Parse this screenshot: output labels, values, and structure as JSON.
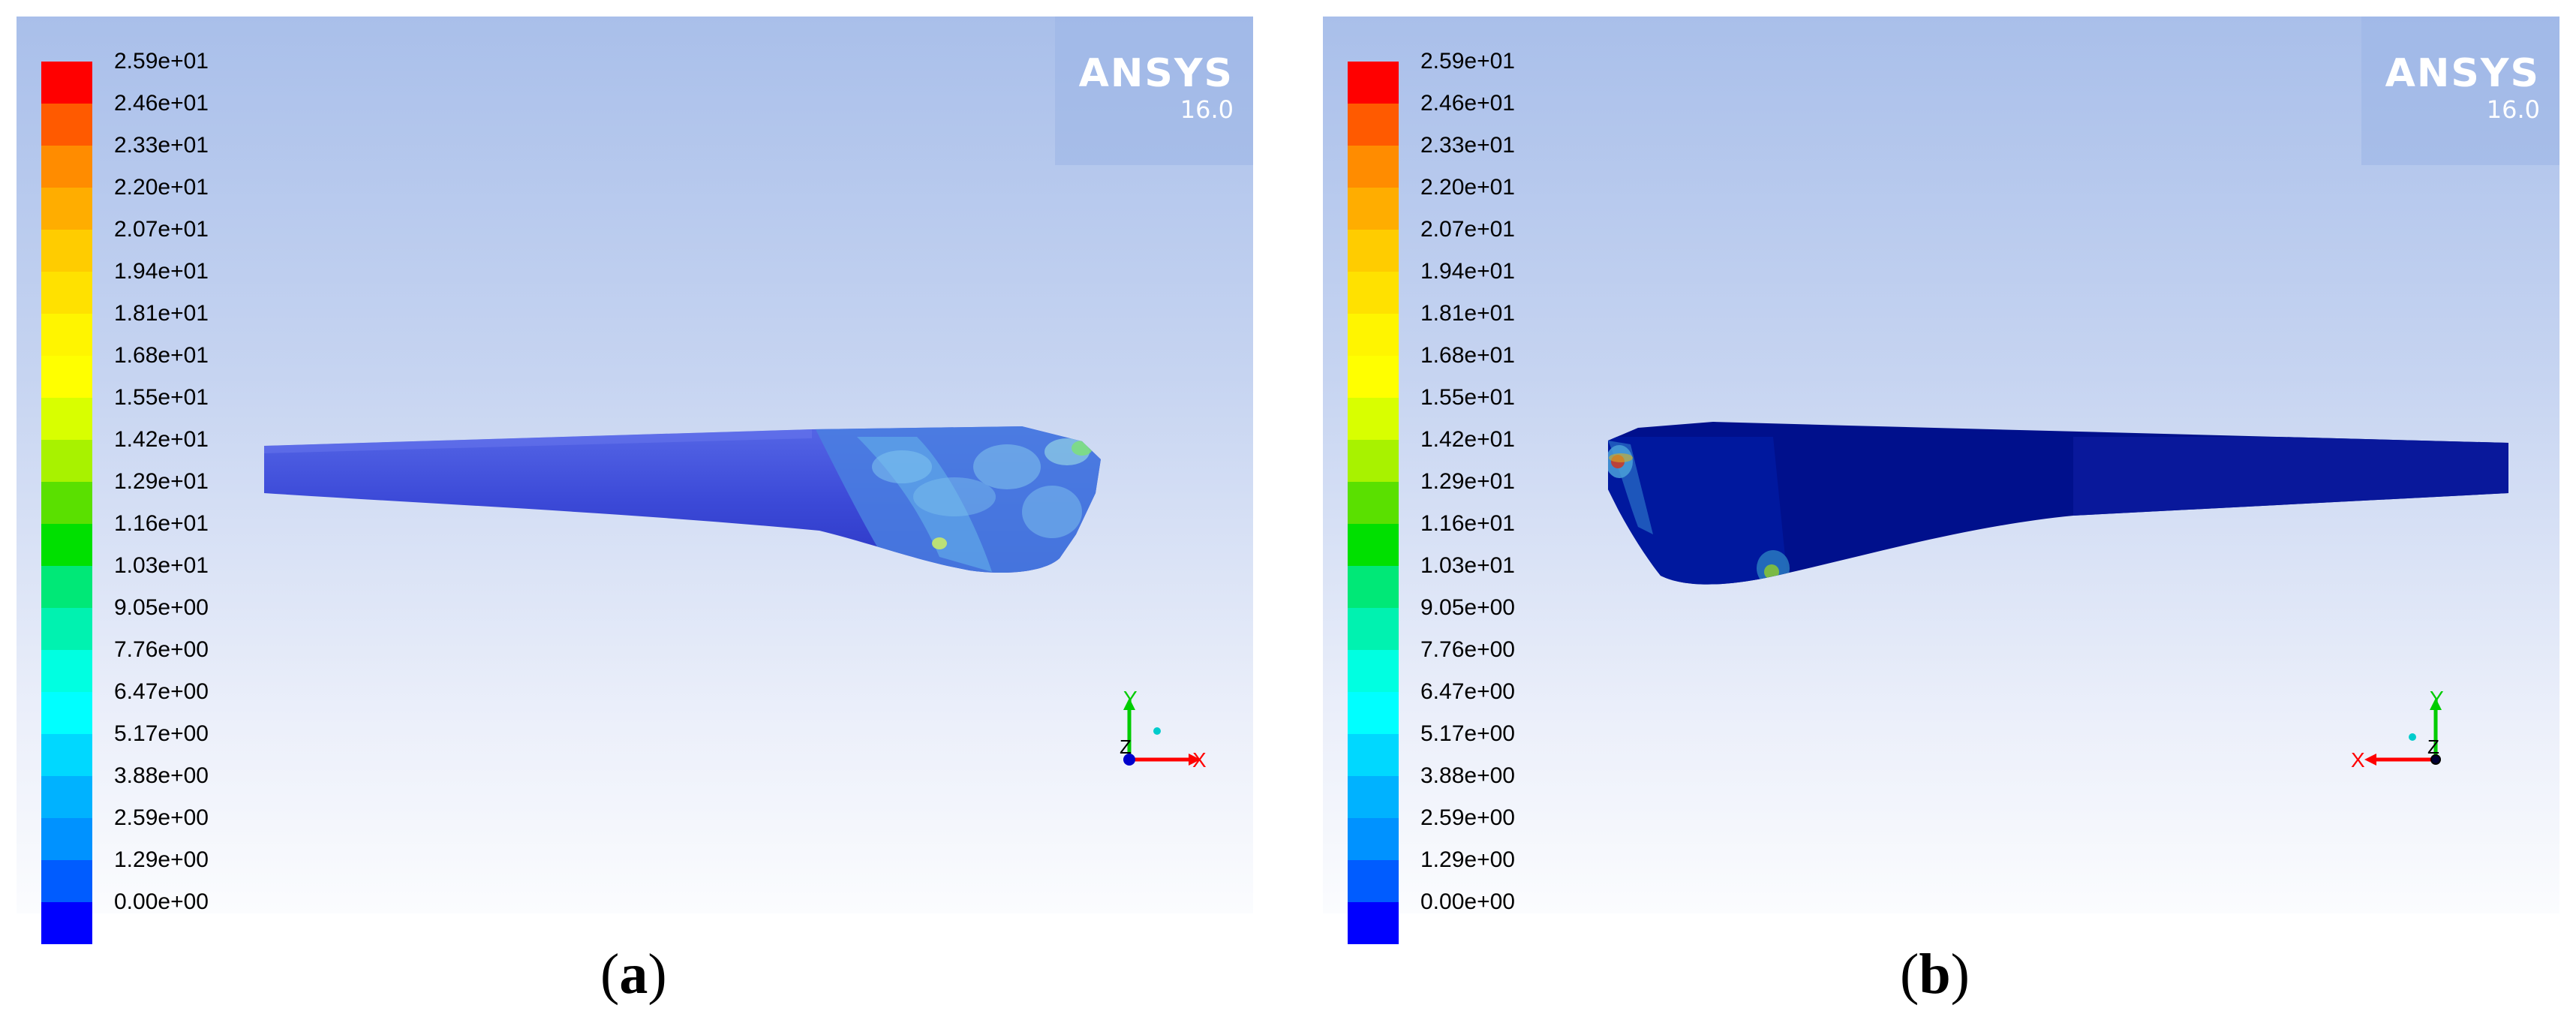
{
  "colorbar": {
    "labels": [
      "2.59e+01",
      "2.46e+01",
      "2.33e+01",
      "2.20e+01",
      "2.07e+01",
      "1.94e+01",
      "1.81e+01",
      "1.68e+01",
      "1.55e+01",
      "1.42e+01",
      "1.29e+01",
      "1.16e+01",
      "1.03e+01",
      "9.05e+00",
      "7.76e+00",
      "6.47e+00",
      "5.17e+00",
      "3.88e+00",
      "2.59e+00",
      "1.29e+00",
      "0.00e+00"
    ],
    "colors": [
      "#ff0000",
      "#ff5a00",
      "#ff8c00",
      "#ffad00",
      "#ffcc00",
      "#ffe100",
      "#fff500",
      "#ffff00",
      "#d8ff00",
      "#a8f200",
      "#5ae000",
      "#00e000",
      "#00e877",
      "#00f2b0",
      "#00ffe1",
      "#00ffff",
      "#00d8ff",
      "#00b2ff",
      "#0092ff",
      "#005cff",
      "#0000ff"
    ]
  },
  "logo": {
    "name": "ANSYS",
    "version": "16.0"
  },
  "axes": {
    "x": "X",
    "y": "Y",
    "z": "Z"
  },
  "captions": {
    "a": {
      "open": "(",
      "letter": "a",
      "close": ")"
    },
    "b": {
      "open": "(",
      "letter": "b",
      "close": ")"
    }
  }
}
